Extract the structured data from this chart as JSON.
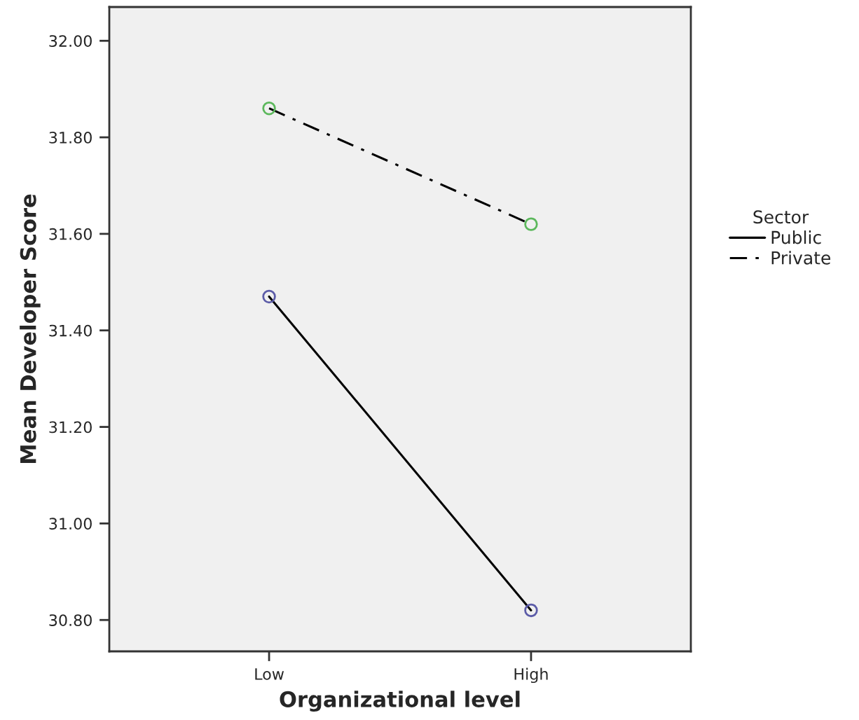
{
  "chart_data": {
    "type": "line",
    "xlabel": "Organizational level",
    "ylabel": "Mean Developer Score",
    "legend_title": "Sector",
    "categories": [
      "Low",
      "High"
    ],
    "series": [
      {
        "name": "Public",
        "color": "#000000",
        "colors": [
          "#5c5ca8",
          "#5c5ca8"
        ],
        "line_style": "solid",
        "values": [
          31.47,
          30.82
        ]
      },
      {
        "name": "Private",
        "color": "#000000",
        "colors": [
          "#5cb85c",
          "#5cb85c"
        ],
        "line_style": "dashdot",
        "values": [
          31.86,
          31.62
        ]
      }
    ],
    "ylim": [
      30.735,
      32.07
    ],
    "yticks": [
      {
        "value": 30.8,
        "label": "30.80"
      },
      {
        "value": 31.0,
        "label": "31.00"
      },
      {
        "value": 31.2,
        "label": "31.20"
      },
      {
        "value": 31.4,
        "label": "31.40"
      },
      {
        "value": 31.6,
        "label": "31.60"
      },
      {
        "value": 31.8,
        "label": "31.80"
      },
      {
        "value": 32.0,
        "label": "32.00"
      }
    ],
    "marker": "circle",
    "legend": "right",
    "grid": false
  }
}
